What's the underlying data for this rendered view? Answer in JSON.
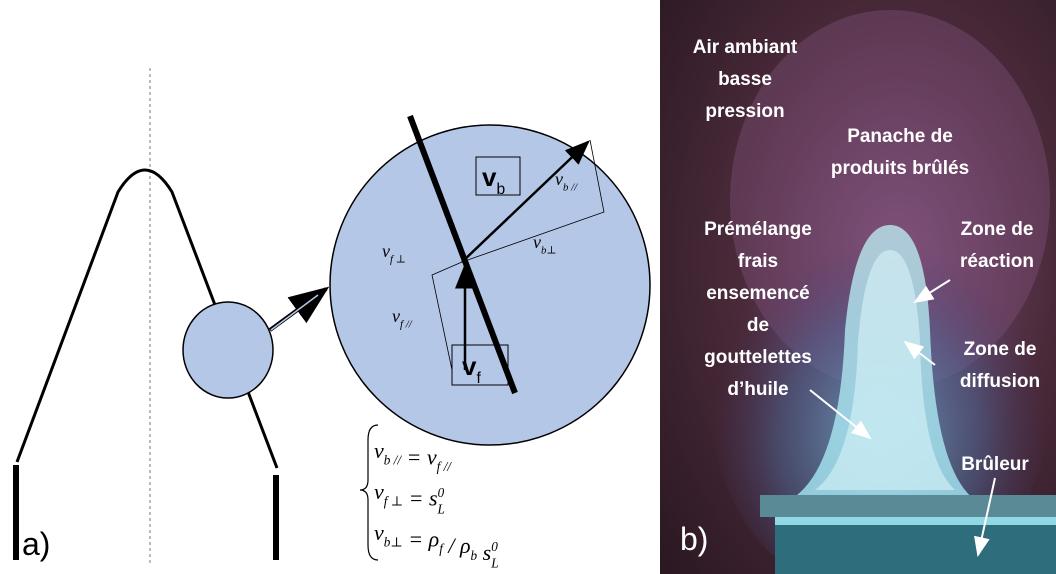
{
  "panel_a": {
    "label": "a)",
    "vb_box": {
      "main": "v",
      "sub": "b"
    },
    "vf_box": {
      "main": "v",
      "sub": "f"
    },
    "vb_par": {
      "main": "v",
      "sub": "b //"
    },
    "vb_perp": {
      "main": "v",
      "sub": "b⊥"
    },
    "vf_perp": {
      "main": "v",
      "sub": "f ⊥"
    },
    "vf_par": {
      "main": "v",
      "sub": "f //"
    },
    "equations": [
      [
        {
          "main": "v",
          "sub": "b //"
        },
        {
          "main": " = "
        },
        {
          "main": "v",
          "sub": "f //"
        }
      ],
      [
        {
          "main": "v",
          "sub": "f ⊥"
        },
        {
          "main": " = "
        },
        {
          "main": "s",
          "sub": "L",
          "sup": "0"
        }
      ],
      [
        {
          "main": "v",
          "sub": "b⊥"
        },
        {
          "main": " = "
        },
        {
          "main": "ρ",
          "sub": "f"
        },
        {
          "main": " / "
        },
        {
          "main": "ρ",
          "sub": "b"
        },
        {
          "main": " s",
          "sub": "L",
          "sup": "0"
        }
      ]
    ]
  },
  "panel_b": {
    "label": "b)",
    "labels": [
      {
        "lines": [
          "Air ambiant",
          "basse",
          "pression"
        ]
      },
      {
        "lines": [
          "Panache de",
          "produits brûlés"
        ]
      },
      {
        "lines": [
          "Prémélange",
          "frais",
          "ensemencé",
          "de",
          "gouttelettes",
          "d’huile"
        ]
      },
      {
        "lines": [
          "Zone de",
          "réaction"
        ]
      },
      {
        "lines": [
          "Zone de",
          "diffusion"
        ]
      },
      {
        "lines": [
          "Brûleur"
        ]
      }
    ]
  }
}
